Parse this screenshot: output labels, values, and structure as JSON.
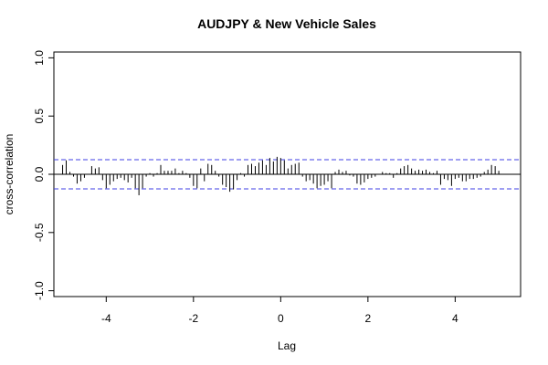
{
  "chart_data": {
    "type": "bar",
    "title": "AUDJPY & New Vehicle Sales",
    "xlabel": "Lag",
    "ylabel": "cross-correlation",
    "xlim": [
      -5.2,
      5.5
    ],
    "ylim": [
      -1.05,
      1.05
    ],
    "x_ticks": [
      "-4",
      "-2",
      "0",
      "2",
      "4"
    ],
    "y_ticks": [
      "-1.0",
      "-0.5",
      "0.0",
      "0.5",
      "1.0"
    ],
    "confidence_band": 0.125,
    "lag_step": 0.0833,
    "lags": [
      -5.0,
      -4.917,
      -4.833,
      -4.75,
      -4.667,
      -4.583,
      -4.5,
      -4.417,
      -4.333,
      -4.25,
      -4.167,
      -4.083,
      -4.0,
      -3.917,
      -3.833,
      -3.75,
      -3.667,
      -3.583,
      -3.5,
      -3.417,
      -3.333,
      -3.25,
      -3.167,
      -3.083,
      -3.0,
      -2.917,
      -2.833,
      -2.75,
      -2.667,
      -2.583,
      -2.5,
      -2.417,
      -2.333,
      -2.25,
      -2.167,
      -2.083,
      -2.0,
      -1.917,
      -1.833,
      -1.75,
      -1.667,
      -1.583,
      -1.5,
      -1.417,
      -1.333,
      -1.25,
      -1.167,
      -1.083,
      -1.0,
      -0.917,
      -0.833,
      -0.75,
      -0.667,
      -0.583,
      -0.5,
      -0.417,
      -0.333,
      -0.25,
      -0.167,
      -0.083,
      0.0,
      0.083,
      0.167,
      0.25,
      0.333,
      0.417,
      0.5,
      0.583,
      0.667,
      0.75,
      0.833,
      0.917,
      1.0,
      1.083,
      1.167,
      1.25,
      1.333,
      1.417,
      1.5,
      1.583,
      1.667,
      1.75,
      1.833,
      1.917,
      2.0,
      2.083,
      2.167,
      2.25,
      2.333,
      2.417,
      2.5,
      2.583,
      2.667,
      2.75,
      2.833,
      2.917,
      3.0,
      3.083,
      3.167,
      3.25,
      3.333,
      3.417,
      3.5,
      3.583,
      3.667,
      3.75,
      3.833,
      3.917,
      4.0,
      4.083,
      4.167,
      4.25,
      4.333,
      4.417,
      4.5,
      4.583,
      4.667,
      4.75,
      4.833,
      4.917,
      5.0
    ],
    "values": [
      0.08,
      0.12,
      0.02,
      -0.02,
      -0.08,
      -0.06,
      -0.03,
      0.0,
      0.07,
      0.05,
      0.06,
      -0.05,
      -0.12,
      -0.09,
      -0.06,
      -0.04,
      -0.03,
      -0.05,
      -0.07,
      -0.03,
      -0.12,
      -0.18,
      -0.12,
      -0.02,
      0.01,
      -0.02,
      0.01,
      0.08,
      0.03,
      0.03,
      0.03,
      0.05,
      0.01,
      0.03,
      0.01,
      -0.03,
      -0.1,
      -0.12,
      0.05,
      -0.06,
      0.09,
      0.08,
      0.03,
      -0.02,
      -0.09,
      -0.11,
      -0.15,
      -0.13,
      -0.05,
      0.01,
      -0.02,
      0.08,
      0.09,
      0.07,
      0.1,
      0.12,
      0.08,
      0.14,
      0.11,
      0.15,
      0.14,
      0.12,
      0.05,
      0.08,
      0.09,
      0.1,
      -0.02,
      -0.06,
      -0.05,
      -0.08,
      -0.12,
      -0.1,
      -0.09,
      -0.06,
      -0.12,
      0.02,
      0.04,
      0.02,
      0.03,
      -0.01,
      -0.02,
      -0.08,
      -0.09,
      -0.07,
      -0.04,
      -0.03,
      -0.02,
      0.0,
      0.02,
      0.01,
      0.01,
      -0.03,
      0.01,
      0.05,
      0.07,
      0.08,
      0.05,
      0.03,
      0.04,
      0.03,
      0.04,
      0.02,
      0.01,
      0.03,
      -0.09,
      -0.04,
      -0.05,
      -0.1,
      -0.04,
      -0.03,
      -0.06,
      -0.06,
      -0.04,
      -0.04,
      -0.03,
      -0.02,
      0.02,
      0.04,
      0.08,
      0.07,
      0.03
    ],
    "colors": {
      "bars": "#000000",
      "band": "#3f3fe6",
      "axes": "#000000",
      "zero_line": "#000000"
    }
  }
}
